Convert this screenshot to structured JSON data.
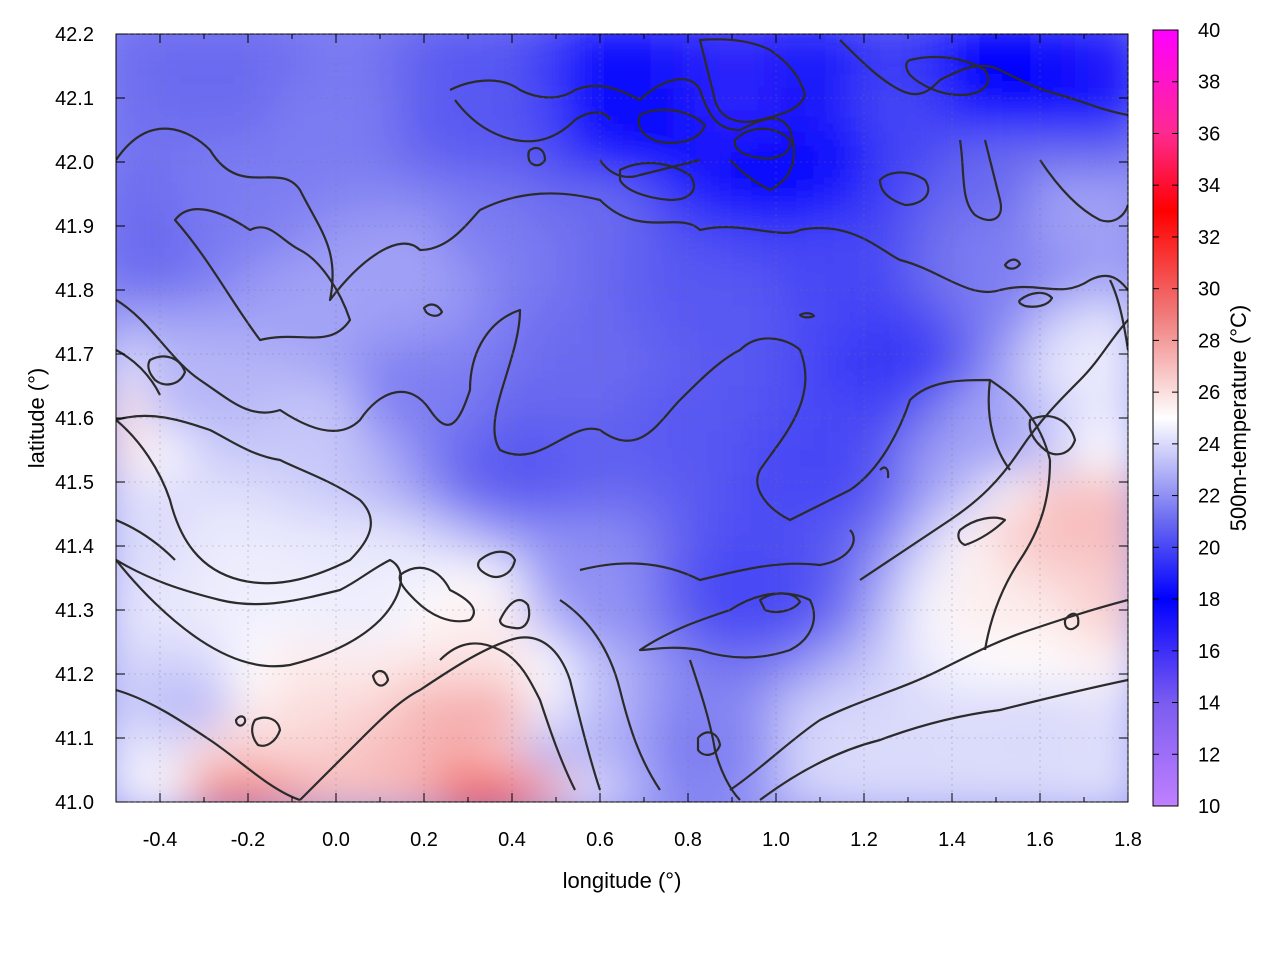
{
  "chart_data": {
    "type": "heatmap",
    "title": "",
    "xlabel": "longitude (°)",
    "ylabel": "latitude (°)",
    "colorbar_label": "500m-temperature (°C)",
    "xlim": [
      -0.5,
      1.8
    ],
    "ylim": [
      41.0,
      42.2
    ],
    "x_ticks": [
      "-0.4",
      "-0.2",
      "0.0",
      "0.2",
      "0.4",
      "0.6",
      "0.8",
      "1.0",
      "1.2",
      "1.4",
      "1.6",
      "1.8"
    ],
    "y_ticks": [
      "41.0",
      "41.1",
      "41.2",
      "41.3",
      "41.4",
      "41.5",
      "41.6",
      "41.7",
      "41.8",
      "41.9",
      "42.0",
      "42.1",
      "42.2"
    ],
    "colorbar_range": [
      10,
      40
    ],
    "colorbar_ticks": [
      "10",
      "12",
      "14",
      "16",
      "18",
      "20",
      "22",
      "24",
      "26",
      "28",
      "30",
      "32",
      "34",
      "36",
      "38",
      "40"
    ],
    "colorscale": [
      {
        "value": 10,
        "color": "#c080ff"
      },
      {
        "value": 14,
        "color": "#7b5cf0"
      },
      {
        "value": 18,
        "color": "#0000ff"
      },
      {
        "value": 21,
        "color": "#6a6af0"
      },
      {
        "value": 25,
        "color": "#ffffff"
      },
      {
        "value": 29,
        "color": "#f07a7a"
      },
      {
        "value": 33,
        "color": "#ff0000"
      },
      {
        "value": 36,
        "color": "#ff2a90"
      },
      {
        "value": 40,
        "color": "#ff00ff"
      }
    ],
    "grid": true,
    "contour_color": "#2b2b2b",
    "field_samples": [
      {
        "lon": -0.45,
        "lat": 41.05,
        "value": 24.5
      },
      {
        "lon": -0.3,
        "lat": 41.15,
        "value": 23.0
      },
      {
        "lon": -0.2,
        "lat": 41.1,
        "value": 26.5
      },
      {
        "lon": -0.05,
        "lat": 41.15,
        "value": 26.0
      },
      {
        "lon": 0.1,
        "lat": 41.05,
        "value": 27.0
      },
      {
        "lon": 0.35,
        "lat": 41.15,
        "value": 27.5
      },
      {
        "lon": 0.4,
        "lat": 41.02,
        "value": 30.0
      },
      {
        "lon": -0.2,
        "lat": 41.02,
        "value": 29.0
      },
      {
        "lon": 0.55,
        "lat": 41.1,
        "value": 23.0
      },
      {
        "lon": 0.85,
        "lat": 41.1,
        "value": 21.5
      },
      {
        "lon": 1.2,
        "lat": 41.1,
        "value": 24.0
      },
      {
        "lon": 1.6,
        "lat": 41.15,
        "value": 24.0
      },
      {
        "lon": 1.7,
        "lat": 41.45,
        "value": 27.0
      },
      {
        "lon": 1.6,
        "lat": 41.3,
        "value": 25.5
      },
      {
        "lon": 1.75,
        "lat": 41.7,
        "value": 24.5
      },
      {
        "lon": 1.5,
        "lat": 41.6,
        "value": 22.5
      },
      {
        "lon": 1.3,
        "lat": 41.7,
        "value": 19.5
      },
      {
        "lon": 1.1,
        "lat": 41.55,
        "value": 20.0
      },
      {
        "lon": 0.85,
        "lat": 41.6,
        "value": 20.5
      },
      {
        "lon": 0.95,
        "lat": 41.35,
        "value": 20.0
      },
      {
        "lon": 0.6,
        "lat": 41.35,
        "value": 22.0
      },
      {
        "lon": 0.35,
        "lat": 41.3,
        "value": 25.5
      },
      {
        "lon": 0.1,
        "lat": 41.35,
        "value": 24.5
      },
      {
        "lon": -0.2,
        "lat": 41.4,
        "value": 24.5
      },
      {
        "lon": -0.4,
        "lat": 41.45,
        "value": 24.0
      },
      {
        "lon": -0.3,
        "lat": 41.65,
        "value": 23.0
      },
      {
        "lon": 0.0,
        "lat": 41.6,
        "value": 23.5
      },
      {
        "lon": 0.2,
        "lat": 41.65,
        "value": 21.5
      },
      {
        "lon": 0.45,
        "lat": 41.55,
        "value": 20.5
      },
      {
        "lon": 0.6,
        "lat": 41.7,
        "value": 21.0
      },
      {
        "lon": 0.9,
        "lat": 41.8,
        "value": 20.5
      },
      {
        "lon": 1.2,
        "lat": 41.85,
        "value": 20.0
      },
      {
        "lon": 1.5,
        "lat": 41.85,
        "value": 21.5
      },
      {
        "lon": 1.7,
        "lat": 41.95,
        "value": 22.5
      },
      {
        "lon": -0.4,
        "lat": 41.9,
        "value": 21.0
      },
      {
        "lon": -0.2,
        "lat": 41.95,
        "value": 21.5
      },
      {
        "lon": 0.0,
        "lat": 41.8,
        "value": 22.5
      },
      {
        "lon": 0.2,
        "lat": 41.85,
        "value": 22.5
      },
      {
        "lon": 0.4,
        "lat": 41.9,
        "value": 21.5
      },
      {
        "lon": 0.6,
        "lat": 41.95,
        "value": 21.0
      },
      {
        "lon": 0.35,
        "lat": 42.1,
        "value": 20.5
      },
      {
        "lon": 0.72,
        "lat": 42.08,
        "value": 17.5
      },
      {
        "lon": 0.95,
        "lat": 42.12,
        "value": 16.5
      },
      {
        "lon": 1.05,
        "lat": 42.05,
        "value": 17.5
      },
      {
        "lon": 1.3,
        "lat": 42.1,
        "value": 20.0
      },
      {
        "lon": 1.55,
        "lat": 42.15,
        "value": 18.0
      },
      {
        "lon": 1.75,
        "lat": 42.15,
        "value": 17.0
      },
      {
        "lon": -0.2,
        "lat": 42.15,
        "value": 21.0
      },
      {
        "lon": 0.0,
        "lat": 42.1,
        "value": 21.5
      },
      {
        "lon": 1.55,
        "lat": 42.0,
        "value": 21.0
      },
      {
        "lon": -0.48,
        "lat": 41.6,
        "value": 26.0
      },
      {
        "lon": 1.78,
        "lat": 41.35,
        "value": 26.5
      }
    ]
  }
}
